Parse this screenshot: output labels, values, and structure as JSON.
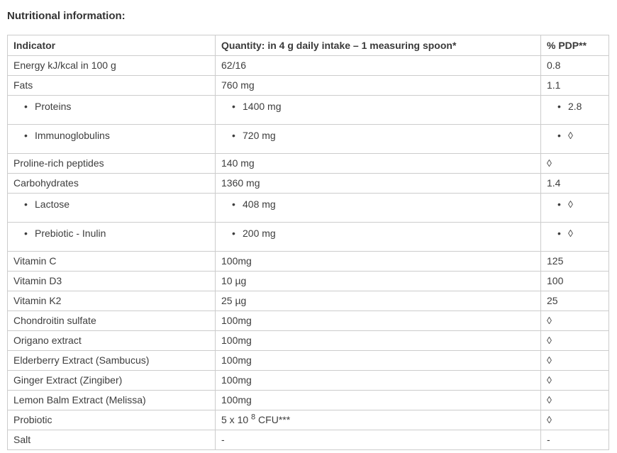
{
  "page": {
    "title": "Nutritional information:"
  },
  "table": {
    "bullet_char": "•",
    "headers": [
      "Indicator",
      "Quantity: in 4 g daily intake – 1 measuring spoon*",
      "% PDP**"
    ],
    "rows": [
      {
        "indicator": "Energy kJ/kcal in 100 g",
        "quantity": "62/16",
        "pdp": "0.8",
        "sub": false
      },
      {
        "indicator": "Fats",
        "quantity": "760 mg",
        "pdp": "1.1",
        "sub": false
      },
      {
        "indicator": "Proteins",
        "quantity": "1400 mg",
        "pdp": "2.8",
        "sub": true
      },
      {
        "indicator": "Immunoglobulins",
        "quantity": "720 mg",
        "pdp": "◊",
        "sub": true
      },
      {
        "indicator": "Proline-rich peptides",
        "quantity": "140 mg",
        "pdp": "◊",
        "sub": false
      },
      {
        "indicator": "Carbohydrates",
        "quantity": "1360 mg",
        "pdp": "1.4",
        "sub": false
      },
      {
        "indicator": "Lactose",
        "quantity": "408 mg",
        "pdp": "◊",
        "sub": true
      },
      {
        "indicator": "Prebiotic - Inulin",
        "quantity": "200 mg",
        "pdp": "◊",
        "sub": true
      },
      {
        "indicator": "Vitamin C",
        "quantity": "100mg",
        "pdp": "125",
        "sub": false
      },
      {
        "indicator": "Vitamin D3",
        "quantity": "10 µg",
        "pdp": "100",
        "sub": false
      },
      {
        "indicator": "Vitamin K2",
        "quantity": "25 µg",
        "pdp": "25",
        "sub": false
      },
      {
        "indicator": "Chondroitin sulfate",
        "quantity": "100mg",
        "pdp": "◊",
        "sub": false
      },
      {
        "indicator": "Origano extract",
        "quantity": "100mg",
        "pdp": "◊",
        "sub": false
      },
      {
        "indicator": "Elderberry Extract (Sambucus)",
        "quantity": "100mg",
        "pdp": "◊",
        "sub": false
      },
      {
        "indicator": "Ginger Extract (Zingiber)",
        "quantity": "100mg",
        "pdp": "◊",
        "sub": false
      },
      {
        "indicator": "Lemon Balm Extract (Melissa)",
        "quantity": "100mg",
        "pdp": "◊",
        "sub": false
      },
      {
        "indicator": "Probiotic",
        "quantity": "5 x 10",
        "quantity_sup": "8",
        "quantity_after": "CFU***",
        "pdp": "◊",
        "sub": false
      },
      {
        "indicator": "Salt",
        "quantity": "-",
        "pdp": "-",
        "sub": false
      }
    ],
    "colors": {
      "border": "#cccccc",
      "text": "#3d3d3d",
      "background": "#ffffff"
    }
  }
}
